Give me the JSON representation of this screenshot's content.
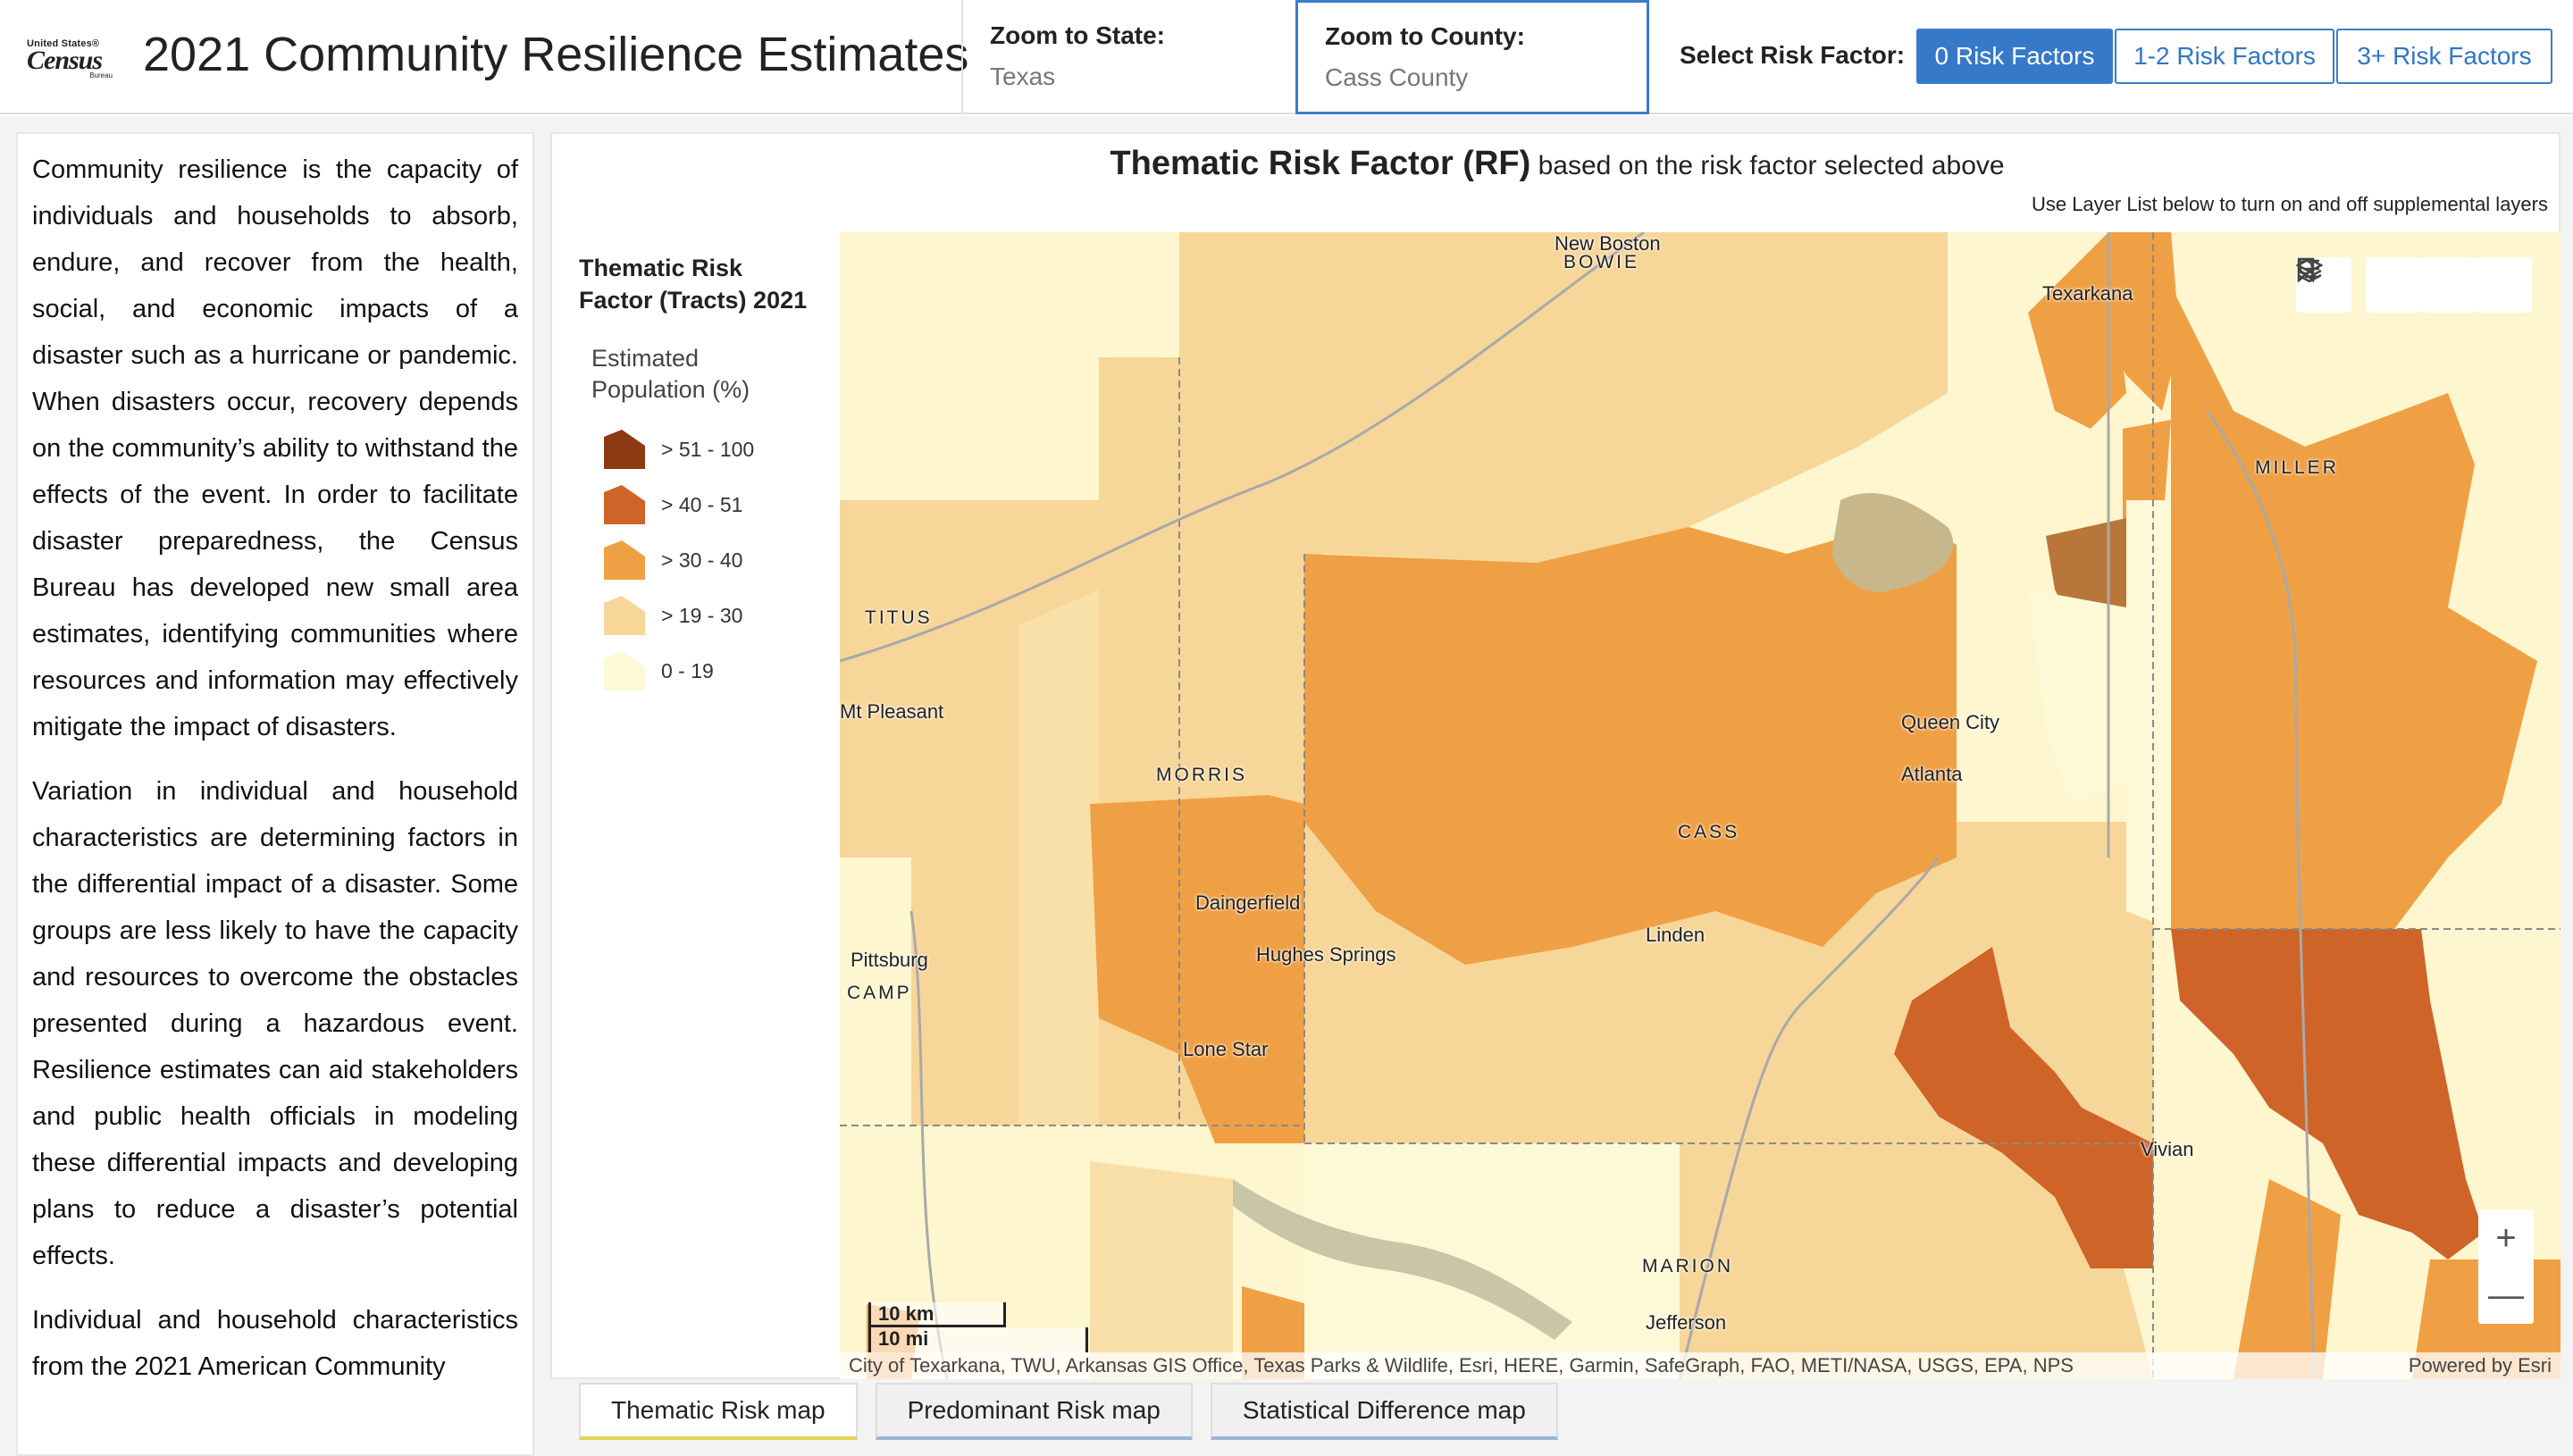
{
  "header": {
    "logo": {
      "line1": "United States®",
      "line2": "Census",
      "line3": "Bureau"
    },
    "title": "2021 Community Resilience Estimates",
    "zoom_state": {
      "label": "Zoom to State:",
      "value": "Texas"
    },
    "zoom_county": {
      "label": "Zoom to County:",
      "value": "Cass County"
    },
    "risk_label": "Select Risk Factor:",
    "risk_buttons": [
      "0 Risk Factors",
      "1-2 Risk Factors",
      "3+ Risk Factors"
    ]
  },
  "text_panel": {
    "paragraphs": [
      "Community resilience is the capacity of individuals and households to absorb, endure, and recover from the health, social, and economic impacts of a disaster such as a hurricane or pandemic.  When disasters occur, recovery depends on the community’s ability to withstand the effects of the event. In order to facilitate disaster preparedness, the Census Bureau has developed new small area estimates, identifying communities where resources and information may effectively mitigate the impact of disasters.",
      "Variation in individual and household characteristics are determining factors in the differential impact of a disaster. Some groups are less likely to have the capacity and resources to overcome the obstacles presented during a hazardous event.  Resilience estimates can aid stakeholders and public health officials in modeling these differential impacts and developing plans to reduce a disaster’s potential effects.",
      "Individual and household characteristics from the 2021 American Community"
    ]
  },
  "map_panel": {
    "heading_bold": "Thematic Risk Factor (RF)",
    "heading_rest": "based on the risk factor selected above",
    "subheading": "Use Layer List below to turn on and off supplemental layers",
    "legend": {
      "title": "Thematic Risk Factor (Tracts) 2021",
      "subtitle": "Estimated Population (%)",
      "items": [
        {
          "label": "> 51 - 100",
          "color": "#8c3a13"
        },
        {
          "label": "> 40 - 51",
          "color": "#cf6428"
        },
        {
          "label": "> 30 - 40",
          "color": "#f0a044"
        },
        {
          "label": "> 19 - 30",
          "color": "#f7d699"
        },
        {
          "label": "0 - 19",
          "color": "#fdf8d6"
        }
      ]
    },
    "places": {
      "new_boston": "New Boston",
      "bowie": "BOWIE",
      "texarkana": "Texarkana",
      "miller": "MILLER",
      "titus": "TITUS",
      "mt_pleasant": "Mt Pleasant",
      "queen_city": "Queen City",
      "atlanta": "Atlanta",
      "morris": "MORRIS",
      "cass": "CASS",
      "daingerfield": "Daingerfield",
      "hughes_springs": "Hughes Springs",
      "linden": "Linden",
      "pittsburg": "Pittsburg",
      "camp": "CAMP",
      "lone_star": "Lone Star",
      "vivian": "Vivian",
      "marion": "MARION",
      "jefferson": "Jefferson"
    },
    "scale": {
      "km": "10 km",
      "mi": "10 mi"
    },
    "attribution": "City of Texarkana, TWU, Arkansas GIS Office, Texas Parks & Wildlife, Esri, HERE, Garmin, SafeGraph, FAO, METI/NASA, USGS, EPA, NPS",
    "powered_by": "Powered by Esri",
    "tools": {
      "search": "search-icon",
      "bookmark": "bookmark-icon",
      "list": "layer-list-icon",
      "layers": "layers-icon"
    },
    "zoom_in": "+",
    "zoom_out": "—"
  },
  "tabs": [
    "Thematic Risk map",
    "Predominant Risk map",
    "Statistical Difference map"
  ]
}
